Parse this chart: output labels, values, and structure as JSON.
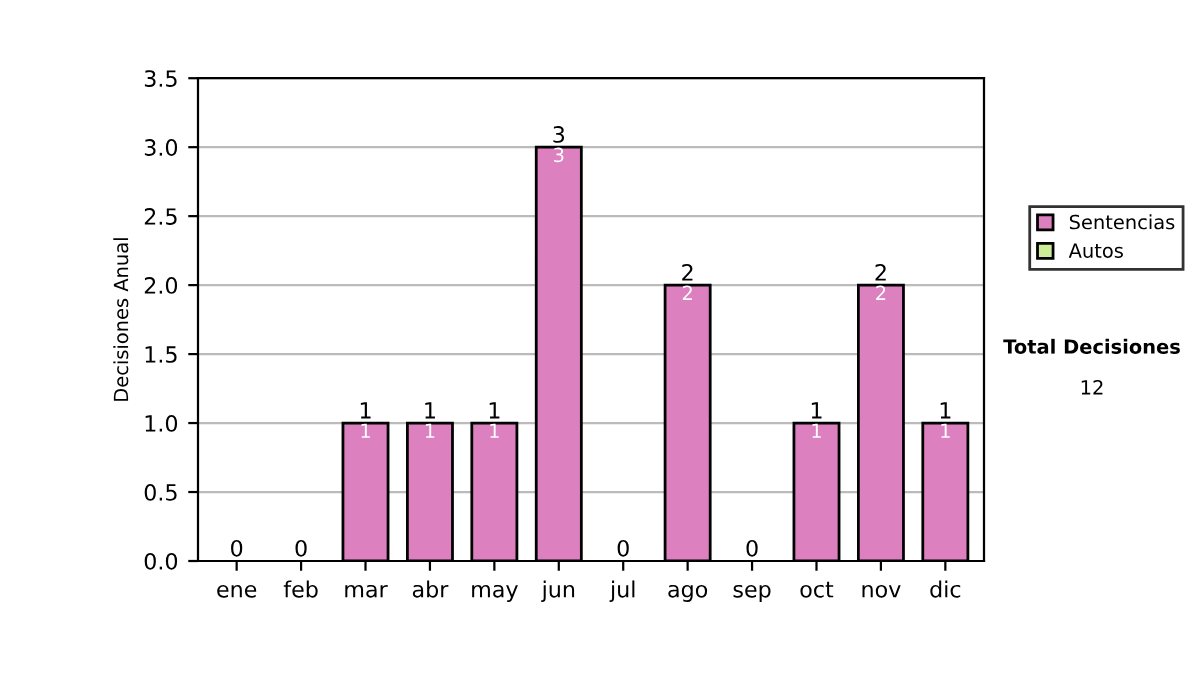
{
  "chart_data": {
    "type": "bar",
    "stacked": true,
    "ylabel": "Decisiones Anual",
    "categories": [
      "ene",
      "feb",
      "mar",
      "abr",
      "may",
      "jun",
      "jul",
      "ago",
      "sep",
      "oct",
      "nov",
      "dic"
    ],
    "series": [
      {
        "name": "Sentencias",
        "color": "#dd80c0",
        "values": [
          0,
          0,
          1,
          1,
          1,
          3,
          0,
          2,
          0,
          1,
          2,
          1
        ],
        "value_labels": [
          null,
          null,
          "1",
          "1",
          "1",
          "3",
          null,
          "2",
          null,
          "1",
          "2",
          "1"
        ]
      },
      {
        "name": "Autos",
        "color": "#ccee99",
        "values": [
          0,
          0,
          0,
          0,
          0,
          0,
          0,
          0,
          0,
          0,
          0,
          0
        ]
      }
    ],
    "totals": [
      "0",
      "0",
      "1",
      "1",
      "1",
      "3",
      "0",
      "2",
      "0",
      "1",
      "2",
      "1"
    ],
    "ylim": [
      0,
      3.5
    ],
    "yticks": [
      {
        "value": 0,
        "label": "0.0"
      },
      {
        "value": 0.5,
        "label": "0.5"
      },
      {
        "value": 1,
        "label": "1.0"
      },
      {
        "value": 1.5,
        "label": "1.5"
      },
      {
        "value": 2,
        "label": "2.0"
      },
      {
        "value": 2.5,
        "label": "2.5"
      },
      {
        "value": 3,
        "label": "3.0"
      },
      {
        "value": 3.5,
        "label": "3.5"
      }
    ],
    "grid": "y",
    "legend": "right",
    "annotations": [
      "Total Decisiones",
      "12"
    ]
  }
}
